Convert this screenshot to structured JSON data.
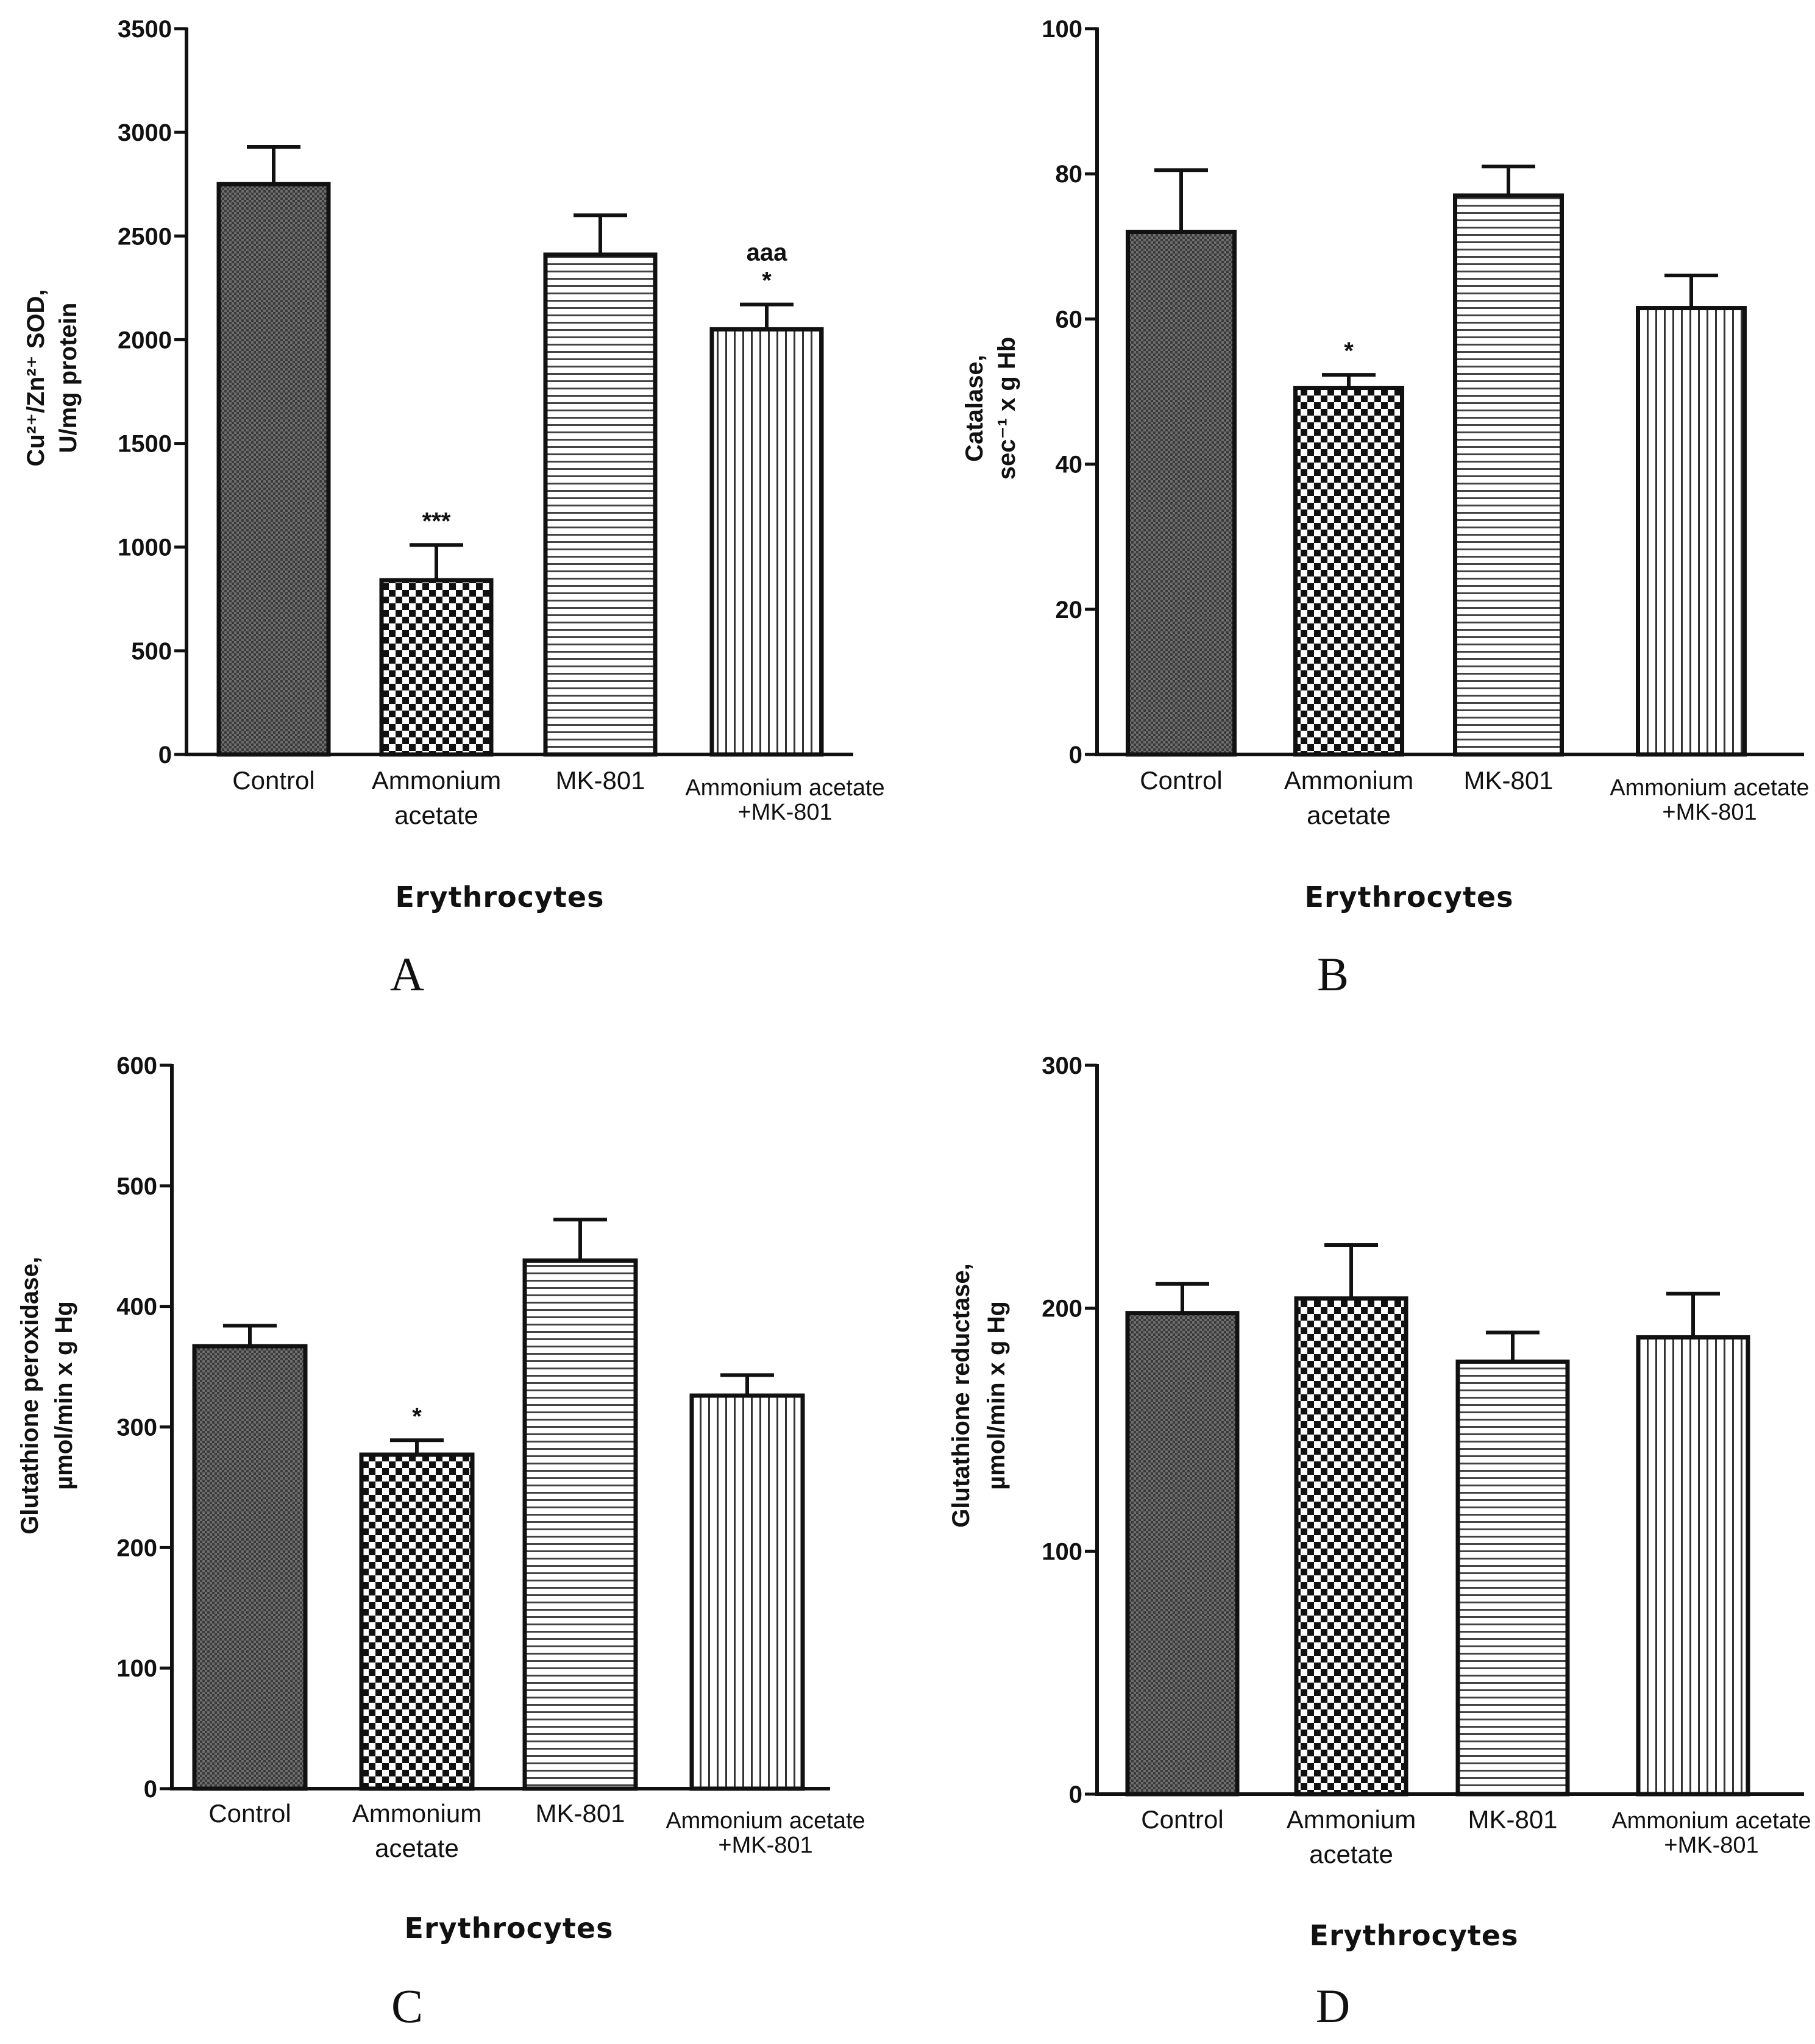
{
  "chart_data": [
    {
      "id": "A",
      "type": "bar",
      "panel_label": "A",
      "xlabel": "Erythrocytes",
      "ylabel": [
        "Cu²⁺/Zn²⁺ SOD,",
        "U/mg protein"
      ],
      "ylim": [
        0,
        3500
      ],
      "yticks": [
        0,
        500,
        1000,
        1500,
        2000,
        2500,
        3000,
        3500
      ],
      "grid": false,
      "categories": [
        [
          "Control"
        ],
        [
          "Ammonium",
          "acetate"
        ],
        [
          "MK-801"
        ],
        [
          "Ammonium acetate",
          "+MK-801"
        ]
      ],
      "values": [
        2750,
        840,
        2410,
        2050
      ],
      "errors": [
        180,
        170,
        190,
        120
      ],
      "patterns": [
        "dense",
        "checker",
        "hlines",
        "vlines"
      ],
      "annotations": [
        [],
        [
          "***"
        ],
        [],
        [
          "*",
          "aaa"
        ]
      ]
    },
    {
      "id": "B",
      "type": "bar",
      "panel_label": "B",
      "xlabel": "Erythrocytes",
      "ylabel": [
        "Catalase,",
        "sec⁻¹ x g Hb"
      ],
      "ylim": [
        0,
        100
      ],
      "yticks": [
        0,
        20,
        40,
        60,
        80,
        100
      ],
      "grid": false,
      "categories": [
        [
          "Control"
        ],
        [
          "Ammonium",
          "acetate"
        ],
        [
          "MK-801"
        ],
        [
          "Ammonium acetate",
          "+MK-801"
        ]
      ],
      "values": [
        72,
        50.5,
        77,
        61.5
      ],
      "errors": [
        8.5,
        1.8,
        4,
        4.5
      ],
      "patterns": [
        "dense",
        "checker",
        "hlines",
        "vlines"
      ],
      "annotations": [
        [],
        [
          "*"
        ],
        [],
        []
      ]
    },
    {
      "id": "C",
      "type": "bar",
      "panel_label": "C",
      "xlabel": "Erythrocytes",
      "ylabel": [
        "Glutathione peroxidase,",
        "µmol/min x g Hg"
      ],
      "ylim": [
        0,
        600
      ],
      "yticks": [
        0,
        100,
        200,
        300,
        400,
        500,
        600
      ],
      "grid": false,
      "categories": [
        [
          "Control"
        ],
        [
          "Ammonium",
          "acetate"
        ],
        [
          "MK-801"
        ],
        [
          "Ammonium acetate",
          "+MK-801"
        ]
      ],
      "values": [
        367,
        277,
        438,
        326
      ],
      "errors": [
        17,
        12,
        34,
        17
      ],
      "patterns": [
        "dense",
        "checker",
        "hlines",
        "vlines"
      ],
      "annotations": [
        [],
        [
          "*"
        ],
        [],
        []
      ]
    },
    {
      "id": "D",
      "type": "bar",
      "panel_label": "D",
      "xlabel": "Erythrocytes",
      "ylabel": [
        "Glutathione reductase,",
        "µmol/min x g Hg"
      ],
      "ylim": [
        0,
        300
      ],
      "yticks": [
        0,
        100,
        200,
        300
      ],
      "grid": false,
      "categories": [
        [
          "Control"
        ],
        [
          "Ammonium",
          "acetate"
        ],
        [
          "MK-801"
        ],
        [
          "Ammonium acetate",
          "+MK-801"
        ]
      ],
      "values": [
        198,
        204,
        178,
        188
      ],
      "errors": [
        12,
        22,
        12,
        18
      ],
      "patterns": [
        "dense",
        "checker",
        "hlines",
        "vlines"
      ],
      "annotations": [
        [],
        [],
        [],
        []
      ]
    }
  ]
}
